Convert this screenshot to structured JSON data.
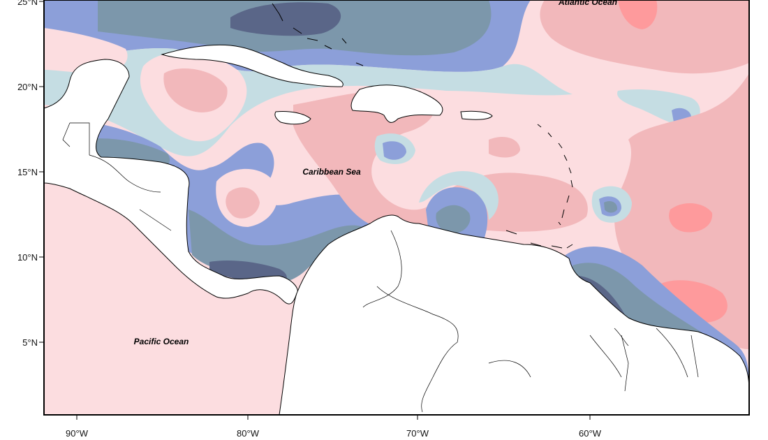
{
  "map": {
    "latitude_labels": [
      "25°N",
      "20°N",
      "15°N",
      "10°N",
      "5°N"
    ],
    "longitude_labels": [
      "90°W",
      "80°W",
      "70°W",
      "60°W"
    ],
    "region_labels": {
      "atlantic": "Atlantic Ocean",
      "caribbean": "Caribbean Sea",
      "pacific": "Pacific Ocean"
    },
    "color_scale": {
      "darkest_blue": "#5a6688",
      "dark_slate": "#7c97ab",
      "medium_blue": "#8c9fd9",
      "light_blue": "#c5dde3",
      "near_white": "#fdf0ef",
      "light_pink": "#fcdde0",
      "pink": "#f2b8bb",
      "red": "#fe9a9c"
    }
  }
}
